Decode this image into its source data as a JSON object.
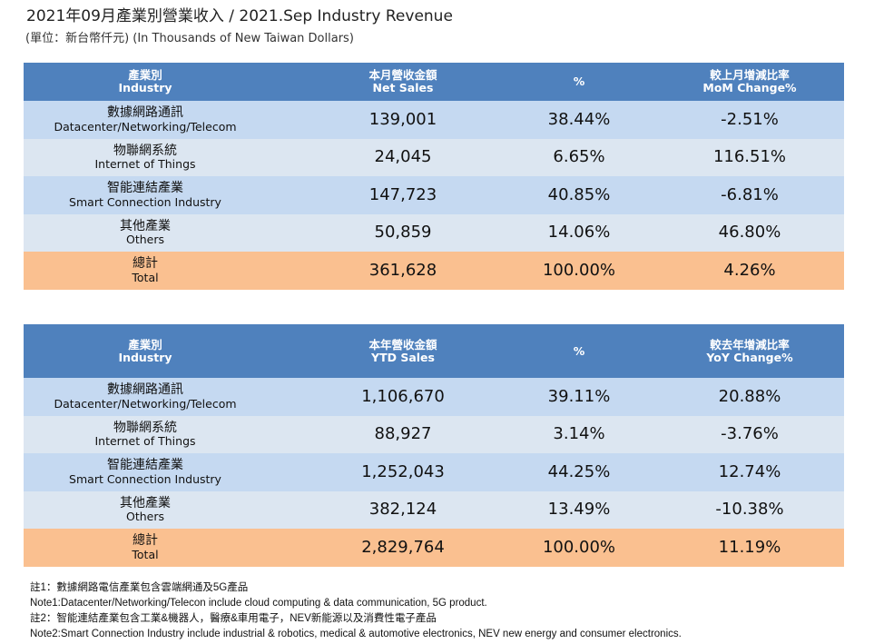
{
  "title": "2021年09月產業別營業收入 / 2021.Sep Industry Revenue",
  "subtitle": "(單位：新台幣仟元) (In Thousands of New Taiwan Dollars)",
  "monthly": {
    "headers": [
      {
        "zh": "產業別",
        "en": "Industry"
      },
      {
        "zh": "本月營收金額",
        "en": "Net Sales"
      },
      {
        "zh": "%",
        "en": ""
      },
      {
        "zh": "較上月增減比率",
        "en": "MoM Change%"
      }
    ],
    "rows": [
      {
        "zh": "數據網路通訊",
        "en": "Datacenter/Networking/Telecom",
        "sales": "139,001",
        "pct": "38.44%",
        "chg": "-2.51%"
      },
      {
        "zh": "物聯網系統",
        "en": "Internet of Things",
        "sales": "24,045",
        "pct": "6.65%",
        "chg": "116.51%"
      },
      {
        "zh": "智能連結產業",
        "en": "Smart Connection Industry",
        "sales": "147,723",
        "pct": "40.85%",
        "chg": "-6.81%"
      },
      {
        "zh": "其他產業",
        "en": "Others",
        "sales": "50,859",
        "pct": "14.06%",
        "chg": "46.80%"
      },
      {
        "zh": "總計",
        "en": "Total",
        "sales": "361,628",
        "pct": "100.00%",
        "chg": "4.26%"
      }
    ]
  },
  "ytd": {
    "headers": [
      {
        "zh": "產業別",
        "en": "Industry"
      },
      {
        "zh": "本年營收金額",
        "en": "YTD Sales"
      },
      {
        "zh": "%",
        "en": ""
      },
      {
        "zh": "較去年增減比率",
        "en": "YoY Change%"
      }
    ],
    "rows": [
      {
        "zh": "數據網路通訊",
        "en": "Datacenter/Networking/Telecom",
        "sales": "1,106,670",
        "pct": "39.11%",
        "chg": "20.88%"
      },
      {
        "zh": "物聯網系統",
        "en": "Internet of Things",
        "sales": "88,927",
        "pct": "3.14%",
        "chg": "-3.76%"
      },
      {
        "zh": "智能連結產業",
        "en": "Smart Connection Industry",
        "sales": "1,252,043",
        "pct": "44.25%",
        "chg": "12.74%"
      },
      {
        "zh": "其他產業",
        "en": "Others",
        "sales": "382,124",
        "pct": "13.49%",
        "chg": "-10.38%"
      },
      {
        "zh": "總計",
        "en": "Total",
        "sales": "2,829,764",
        "pct": "100.00%",
        "chg": "11.19%"
      }
    ]
  },
  "notes": [
    "註1：數據網路電信產業包含雲端網通及5G產品",
    "Note1:Datacenter/Networking/Telecon include cloud computing & data communication, 5G product.",
    "註2：智能連結產業包含工業&機器人，醫療&車用電子，NEV新能源以及消費性電子產品",
    "Note2:Smart Connection Industry include industrial & robotics, medical & automotive electronics, NEV new energy and consumer electronics."
  ],
  "colors": {
    "header": "#4f81bd",
    "row_a": "#c5d9f1",
    "row_b": "#dce6f1",
    "total": "#fac090"
  }
}
